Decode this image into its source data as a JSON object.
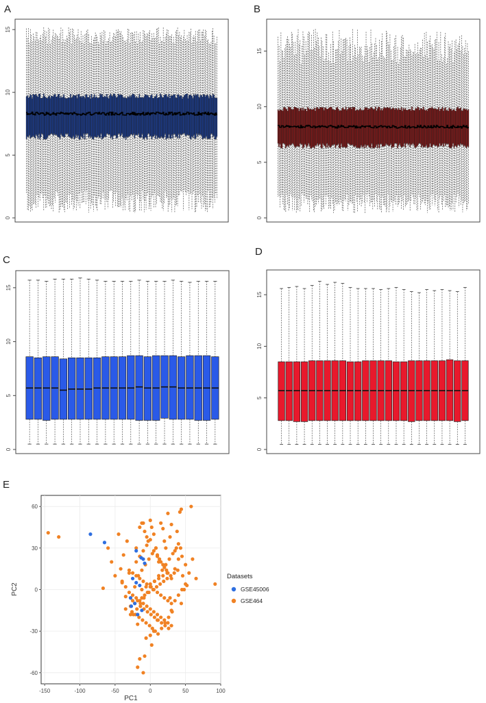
{
  "figure": {
    "panels": [
      "A",
      "B",
      "C",
      "D",
      "E"
    ]
  },
  "chart_data": [
    {
      "panel": "A",
      "type": "boxplot",
      "title": "",
      "xlabel": "",
      "ylabel": "",
      "ylim": [
        0,
        15.5
      ],
      "yticks": [
        "0",
        "5",
        "10",
        "15"
      ],
      "color": "#1c3a85",
      "n_samples": 200,
      "median_typical": 8.3,
      "q1_typical": 6.5,
      "q3_typical": 9.7,
      "whisker_low_range": [
        0.4,
        2.2
      ],
      "whisker_high_range": [
        13.8,
        15.2
      ]
    },
    {
      "panel": "B",
      "type": "boxplot",
      "title": "",
      "xlabel": "",
      "ylabel": "",
      "ylim": [
        0,
        17.5
      ],
      "yticks": [
        "0",
        "5",
        "10",
        "15"
      ],
      "color": "#7a1a1a",
      "n_samples": 200,
      "median_typical": 8.2,
      "q1_typical": 6.5,
      "q3_typical": 9.8,
      "whisker_low_range": [
        0.4,
        2.2
      ],
      "whisker_high_range": [
        13.8,
        17.0
      ]
    },
    {
      "panel": "C",
      "type": "boxplot",
      "title": "",
      "xlabel": "",
      "ylabel": "",
      "ylim": [
        0,
        16.2
      ],
      "yticks": [
        "0",
        "5",
        "10",
        "15"
      ],
      "color": "#2a5ae8",
      "boxes": [
        {
          "min": 0.5,
          "q1": 2.8,
          "median": 5.7,
          "q3": 8.6,
          "max": 15.7
        },
        {
          "min": 0.5,
          "q1": 2.8,
          "median": 5.7,
          "q3": 8.5,
          "max": 15.7
        },
        {
          "min": 0.5,
          "q1": 2.7,
          "median": 5.7,
          "q3": 8.6,
          "max": 15.6
        },
        {
          "min": 0.5,
          "q1": 2.8,
          "median": 5.7,
          "q3": 8.6,
          "max": 15.8
        },
        {
          "min": 0.5,
          "q1": 2.8,
          "median": 5.5,
          "q3": 8.4,
          "max": 15.8
        },
        {
          "min": 0.5,
          "q1": 2.8,
          "median": 5.6,
          "q3": 8.5,
          "max": 15.8
        },
        {
          "min": 0.5,
          "q1": 2.8,
          "median": 5.6,
          "q3": 8.5,
          "max": 15.9
        },
        {
          "min": 0.5,
          "q1": 2.8,
          "median": 5.6,
          "q3": 8.5,
          "max": 15.8
        },
        {
          "min": 0.5,
          "q1": 2.8,
          "median": 5.7,
          "q3": 8.5,
          "max": 15.7
        },
        {
          "min": 0.5,
          "q1": 2.8,
          "median": 5.7,
          "q3": 8.6,
          "max": 15.6
        },
        {
          "min": 0.5,
          "q1": 2.8,
          "median": 5.7,
          "q3": 8.6,
          "max": 15.6
        },
        {
          "min": 0.5,
          "q1": 2.8,
          "median": 5.7,
          "q3": 8.6,
          "max": 15.6
        },
        {
          "min": 0.5,
          "q1": 2.8,
          "median": 5.7,
          "q3": 8.7,
          "max": 15.6
        },
        {
          "min": 0.5,
          "q1": 2.7,
          "median": 5.8,
          "q3": 8.7,
          "max": 15.7
        },
        {
          "min": 0.5,
          "q1": 2.7,
          "median": 5.7,
          "q3": 8.6,
          "max": 15.6
        },
        {
          "min": 0.5,
          "q1": 2.7,
          "median": 5.7,
          "q3": 8.7,
          "max": 15.6
        },
        {
          "min": 0.5,
          "q1": 2.9,
          "median": 5.8,
          "q3": 8.7,
          "max": 15.6
        },
        {
          "min": 0.5,
          "q1": 2.8,
          "median": 5.8,
          "q3": 8.7,
          "max": 15.7
        },
        {
          "min": 0.5,
          "q1": 2.8,
          "median": 5.7,
          "q3": 8.6,
          "max": 15.6
        },
        {
          "min": 0.5,
          "q1": 2.8,
          "median": 5.7,
          "q3": 8.7,
          "max": 15.5
        },
        {
          "min": 0.5,
          "q1": 2.7,
          "median": 5.7,
          "q3": 8.7,
          "max": 15.6
        },
        {
          "min": 0.5,
          "q1": 2.7,
          "median": 5.7,
          "q3": 8.7,
          "max": 15.6
        },
        {
          "min": 0.5,
          "q1": 2.8,
          "median": 5.7,
          "q3": 8.6,
          "max": 15.6
        }
      ]
    },
    {
      "panel": "D",
      "type": "boxplot",
      "title": "",
      "xlabel": "",
      "ylabel": "",
      "ylim": [
        0,
        17
      ],
      "yticks": [
        "0",
        "5",
        "10",
        "15"
      ],
      "color": "#e8192c",
      "boxes": [
        {
          "min": 0.5,
          "q1": 2.8,
          "median": 5.7,
          "q3": 8.5,
          "max": 15.6
        },
        {
          "min": 0.5,
          "q1": 2.8,
          "median": 5.7,
          "q3": 8.5,
          "max": 15.7
        },
        {
          "min": 0.5,
          "q1": 2.7,
          "median": 5.7,
          "q3": 8.5,
          "max": 15.8
        },
        {
          "min": 0.5,
          "q1": 2.7,
          "median": 5.7,
          "q3": 8.5,
          "max": 15.6
        },
        {
          "min": 0.5,
          "q1": 2.8,
          "median": 5.7,
          "q3": 8.6,
          "max": 15.9
        },
        {
          "min": 0.5,
          "q1": 2.8,
          "median": 5.7,
          "q3": 8.6,
          "max": 16.3
        },
        {
          "min": 0.5,
          "q1": 2.8,
          "median": 5.7,
          "q3": 8.6,
          "max": 16.0
        },
        {
          "min": 0.5,
          "q1": 2.8,
          "median": 5.7,
          "q3": 8.6,
          "max": 16.2
        },
        {
          "min": 0.5,
          "q1": 2.8,
          "median": 5.7,
          "q3": 8.6,
          "max": 16.1
        },
        {
          "min": 0.5,
          "q1": 2.8,
          "median": 5.7,
          "q3": 8.5,
          "max": 15.7
        },
        {
          "min": 0.5,
          "q1": 2.8,
          "median": 5.7,
          "q3": 8.5,
          "max": 15.6
        },
        {
          "min": 0.5,
          "q1": 2.8,
          "median": 5.7,
          "q3": 8.6,
          "max": 15.6
        },
        {
          "min": 0.5,
          "q1": 2.8,
          "median": 5.7,
          "q3": 8.6,
          "max": 15.6
        },
        {
          "min": 0.5,
          "q1": 2.8,
          "median": 5.7,
          "q3": 8.6,
          "max": 15.5
        },
        {
          "min": 0.5,
          "q1": 2.8,
          "median": 5.7,
          "q3": 8.6,
          "max": 15.6
        },
        {
          "min": 0.5,
          "q1": 2.8,
          "median": 5.7,
          "q3": 8.5,
          "max": 15.7
        },
        {
          "min": 0.5,
          "q1": 2.8,
          "median": 5.7,
          "q3": 8.5,
          "max": 15.5
        },
        {
          "min": 0.5,
          "q1": 2.7,
          "median": 5.7,
          "q3": 8.6,
          "max": 15.3
        },
        {
          "min": 0.5,
          "q1": 2.8,
          "median": 5.7,
          "q3": 8.6,
          "max": 15.2
        },
        {
          "min": 0.5,
          "q1": 2.8,
          "median": 5.7,
          "q3": 8.6,
          "max": 15.5
        },
        {
          "min": 0.5,
          "q1": 2.8,
          "median": 5.7,
          "q3": 8.6,
          "max": 15.4
        },
        {
          "min": 0.5,
          "q1": 2.8,
          "median": 5.7,
          "q3": 8.6,
          "max": 15.5
        },
        {
          "min": 0.5,
          "q1": 2.8,
          "median": 5.7,
          "q3": 8.7,
          "max": 15.4
        },
        {
          "min": 0.5,
          "q1": 2.7,
          "median": 5.7,
          "q3": 8.6,
          "max": 15.3
        },
        {
          "min": 0.5,
          "q1": 2.8,
          "median": 5.7,
          "q3": 8.6,
          "max": 15.7
        }
      ]
    },
    {
      "panel": "E",
      "type": "scatter",
      "title": "",
      "xlabel": "PC1",
      "ylabel": "PC2",
      "xlim": [
        -155,
        100
      ],
      "ylim": [
        -68,
        68
      ],
      "xticks": [
        "-150",
        "-100",
        "-50",
        "0",
        "50",
        "100"
      ],
      "yticks": [
        "-60",
        "-30",
        "0",
        "30",
        "60"
      ],
      "legend_title": "Datasets",
      "legend_position": "right",
      "series": [
        {
          "name": "GSE45006",
          "color": "#2f6fe0",
          "x": [
            -85,
            -65,
            -20,
            -13,
            -10,
            -8,
            -25,
            -20,
            -15,
            -28,
            -22,
            -12,
            -18,
            -27
          ],
          "y": [
            40,
            34,
            28,
            23,
            22,
            19,
            8,
            5,
            3,
            -6,
            -10,
            -15,
            -18,
            -12
          ]
        },
        {
          "name": "GSE464",
          "color": "#f08224",
          "x": [
            -145,
            -130,
            -67,
            -60,
            -55,
            -50,
            -45,
            -42,
            -40,
            -38,
            -35,
            -33,
            -30,
            -28,
            -25,
            -22,
            -20,
            -18,
            -15,
            -12,
            -10,
            -8,
            -5,
            -3,
            0,
            2,
            5,
            8,
            10,
            12,
            15,
            18,
            20,
            22,
            25,
            28,
            30,
            35,
            40,
            45,
            50,
            55,
            60,
            65,
            92,
            -40,
            -35,
            -30,
            -25,
            -20,
            -15,
            -10,
            -5,
            0,
            5,
            10,
            15,
            20,
            25,
            30,
            35,
            40,
            45,
            50,
            -30,
            -25,
            -20,
            -15,
            -10,
            -5,
            0,
            5,
            10,
            15,
            20,
            25,
            30,
            -35,
            -28,
            -22,
            -18,
            -12,
            -8,
            -2,
            4,
            9,
            14,
            19,
            24,
            29,
            34,
            39,
            44,
            -26,
            -21,
            -16,
            -11,
            -6,
            -1,
            3,
            7,
            11,
            16,
            21,
            26,
            31,
            -24,
            -19,
            -14,
            -9,
            -4,
            1,
            6,
            12,
            17,
            22,
            27,
            32,
            37,
            -20,
            -15,
            -10,
            -5,
            0,
            5,
            10,
            15,
            20,
            25,
            30,
            -17,
            -12,
            -7,
            -2,
            3,
            8,
            13,
            18,
            23,
            -14,
            -9,
            -4,
            1,
            6,
            11,
            16,
            21,
            26,
            -12,
            -6,
            0,
            6,
            12,
            18,
            24,
            -10,
            -15,
            -8,
            -18,
            2,
            42,
            44,
            38,
            35,
            28,
            46,
            52,
            30,
            10,
            5,
            -6,
            0,
            40,
            48,
            43,
            58
          ],
          "y": [
            41,
            38,
            1,
            30,
            20,
            10,
            40,
            15,
            5,
            25,
            -5,
            35,
            12,
            -18,
            -8,
            2,
            30,
            -25,
            45,
            48,
            48,
            42,
            38,
            35,
            50,
            45,
            40,
            30,
            25,
            20,
            48,
            44,
            35,
            30,
            55,
            38,
            47,
            28,
            33,
            24,
            18,
            12,
            22,
            8,
            4,
            6,
            2,
            -2,
            -4,
            -6,
            -8,
            -10,
            -12,
            -14,
            -16,
            -18,
            -20,
            -22,
            -24,
            -26,
            -8,
            -4,
            0,
            4,
            14,
            12,
            10,
            8,
            6,
            4,
            2,
            0,
            -2,
            -4,
            -6,
            -8,
            -10,
            -14,
            -12,
            -10,
            -8,
            -6,
            -4,
            -2,
            0,
            2,
            4,
            6,
            8,
            10,
            12,
            14,
            -10,
            -16,
            -18,
            -20,
            -22,
            -24,
            -26,
            -28,
            -30,
            -32,
            -28,
            -24,
            -20,
            -16,
            -18,
            -14,
            -10,
            -6,
            -2,
            2,
            6,
            10,
            14,
            18,
            22,
            26,
            30,
            20,
            24,
            28,
            32,
            36,
            28,
            24,
            20,
            16,
            12,
            8,
            10,
            14,
            18,
            22,
            26,
            30,
            22,
            18,
            14,
            -12,
            -14,
            -16,
            -18,
            -20,
            -22,
            -24,
            -26,
            -28,
            0,
            2,
            4,
            6,
            8,
            10,
            12,
            -60,
            -50,
            -48,
            -56,
            -40,
            56,
            58,
            42,
            15,
            -6,
            10,
            3,
            -15,
            -22,
            -30,
            -35,
            -33,
            22,
            0,
            30,
            60
          ]
        }
      ]
    }
  ]
}
